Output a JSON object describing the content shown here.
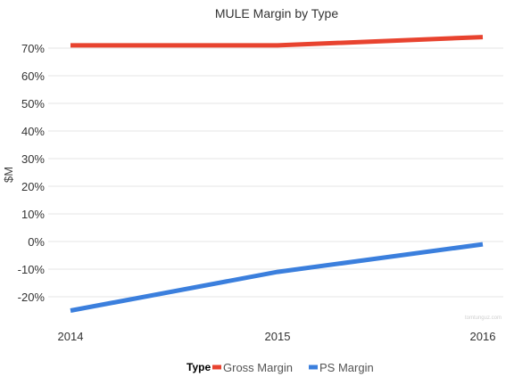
{
  "chart_data": {
    "type": "line",
    "title": "MULE Margin by Type",
    "xlabel": "",
    "ylabel": "$M",
    "x": [
      "2014",
      "2015",
      "2016"
    ],
    "ylim": [
      -0.25,
      0.74
    ],
    "yticks": [
      "-20%",
      "-10%",
      "0%",
      "10%",
      "20%",
      "30%",
      "40%",
      "50%",
      "60%",
      "70%"
    ],
    "ytick_values": [
      -0.2,
      -0.1,
      0,
      0.1,
      0.2,
      0.3,
      0.4,
      0.5,
      0.6,
      0.7
    ],
    "grid": true,
    "legend": {
      "title": "Type",
      "position": "bottom"
    },
    "series": [
      {
        "name": "Gross Margin",
        "color": "#e8432f",
        "values": [
          0.71,
          0.71,
          0.74
        ]
      },
      {
        "name": "PS Margin",
        "color": "#3b7fdd",
        "values": [
          -0.25,
          -0.11,
          -0.01
        ]
      }
    ],
    "watermark": "tomtunguz.com"
  }
}
